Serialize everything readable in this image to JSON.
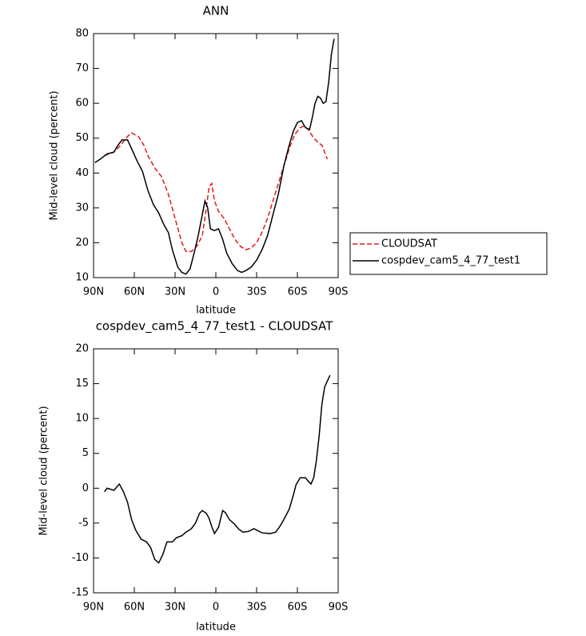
{
  "chart_data": [
    {
      "type": "line",
      "title": "ANN",
      "x_label": "latitude",
      "y_label": "Mid-level cloud (percent)",
      "xlim": [
        90,
        -90
      ],
      "ylim": [
        10,
        80
      ],
      "xticks": [
        {
          "value": 90,
          "label": "90N"
        },
        {
          "value": 60,
          "label": "60N"
        },
        {
          "value": 30,
          "label": "30N"
        },
        0,
        {
          "value": -30,
          "label": "30S"
        },
        {
          "value": -60,
          "label": "60S"
        },
        {
          "value": -90,
          "label": "90S"
        }
      ],
      "yticks": [
        10,
        20,
        30,
        40,
        50,
        60,
        70,
        80
      ],
      "series": [
        {
          "name": "CLOUDSAT",
          "color": "#e41a1c",
          "dash": "dashed",
          "x": [
            82,
            75,
            70,
            65,
            62,
            57,
            53,
            50,
            45,
            40,
            35,
            30,
            25,
            22,
            18,
            14,
            10,
            7,
            5,
            3,
            1,
            -2,
            -6,
            -10,
            -14,
            -18,
            -22,
            -26,
            -30,
            -34,
            -38,
            -42,
            -46,
            -50,
            -54,
            -58,
            -62,
            -65,
            -68,
            -72,
            -76,
            -78,
            -82
          ],
          "values": [
            45,
            46,
            48,
            50.5,
            51.5,
            50.5,
            48,
            45,
            41.5,
            39,
            34,
            27,
            20,
            17.5,
            17.5,
            19,
            22,
            30,
            36,
            37,
            32,
            29,
            27,
            24,
            21,
            19,
            18,
            18.5,
            20,
            23,
            27,
            32,
            37,
            42,
            47,
            51,
            53,
            53.5,
            52.5,
            50,
            48.5,
            48,
            44
          ]
        },
        {
          "name": "cospdev_cam5_4_77_test1",
          "color": "#000000",
          "dash": "solid",
          "x": [
            89,
            85,
            80,
            75,
            72,
            69,
            65,
            62,
            58,
            54,
            50,
            46,
            42,
            38,
            35,
            32,
            28,
            25,
            22,
            19,
            16,
            13,
            10,
            8,
            6,
            4,
            1,
            -2,
            -5,
            -8,
            -12,
            -16,
            -19,
            -22,
            -26,
            -30,
            -34,
            -38,
            -42,
            -46,
            -50,
            -54,
            -57,
            -60,
            -63,
            -66,
            -69,
            -71,
            -73,
            -75,
            -77,
            -79,
            -81,
            -83,
            -85,
            -87
          ],
          "values": [
            43,
            44,
            45.5,
            46,
            48,
            49.5,
            49.5,
            47,
            43.5,
            40.5,
            35,
            31,
            28.5,
            25,
            23,
            18,
            13,
            11.5,
            11,
            12.5,
            17,
            22,
            28,
            32,
            30,
            24,
            23.5,
            24,
            21,
            17,
            14,
            12,
            11.5,
            12,
            13,
            15,
            18,
            22,
            28,
            34,
            42,
            48,
            52,
            54.5,
            55,
            53,
            52.5,
            56,
            60,
            62,
            61.5,
            60,
            60.5,
            66,
            74,
            78.5
          ]
        }
      ]
    },
    {
      "type": "line",
      "title": "cospdev_cam5_4_77_test1 - CLOUDSAT",
      "x_label": "latitude",
      "y_label": "Mid-level cloud (percent)",
      "xlim": [
        90,
        -90
      ],
      "ylim": [
        -15,
        20
      ],
      "xticks": [
        {
          "value": 90,
          "label": "90N"
        },
        {
          "value": 60,
          "label": "60N"
        },
        {
          "value": 30,
          "label": "30N"
        },
        0,
        {
          "value": -30,
          "label": "30S"
        },
        {
          "value": -60,
          "label": "60S"
        },
        {
          "value": -90,
          "label": "90S"
        }
      ],
      "yticks": [
        -15,
        -10,
        -5,
        0,
        5,
        10,
        15,
        20
      ],
      "color": "#000000",
      "x": [
        82,
        80,
        75,
        71,
        68,
        65,
        62,
        59,
        55,
        51,
        48,
        45,
        42,
        39,
        36,
        32,
        29,
        25,
        22,
        18,
        15,
        12,
        10,
        7,
        5,
        3,
        1,
        -2,
        -5,
        -7,
        -10,
        -14,
        -17,
        -20,
        -24,
        -28,
        -30,
        -34,
        -40,
        -44,
        -47,
        -50,
        -54,
        -57,
        -59,
        -62,
        -66,
        -68,
        -70,
        -72,
        -74,
        -76,
        -78,
        -80,
        -84
      ],
      "values": [
        -0.5,
        0,
        -0.3,
        0.6,
        -0.5,
        -2,
        -4.5,
        -6,
        -7.3,
        -7.7,
        -8.5,
        -10.2,
        -10.7,
        -9.5,
        -7.7,
        -7.7,
        -7.1,
        -6.8,
        -6.3,
        -5.8,
        -5,
        -3.6,
        -3.2,
        -3.6,
        -4.3,
        -5.5,
        -6.5,
        -5.6,
        -3.2,
        -3.5,
        -4.5,
        -5.2,
        -5.9,
        -6.3,
        -6.2,
        -5.8,
        -6,
        -6.4,
        -6.5,
        -6.3,
        -5.5,
        -4.5,
        -3,
        -1,
        0.5,
        1.5,
        1.5,
        1,
        0.6,
        1.5,
        4,
        7.5,
        12,
        14.5,
        16.2
      ]
    }
  ]
}
